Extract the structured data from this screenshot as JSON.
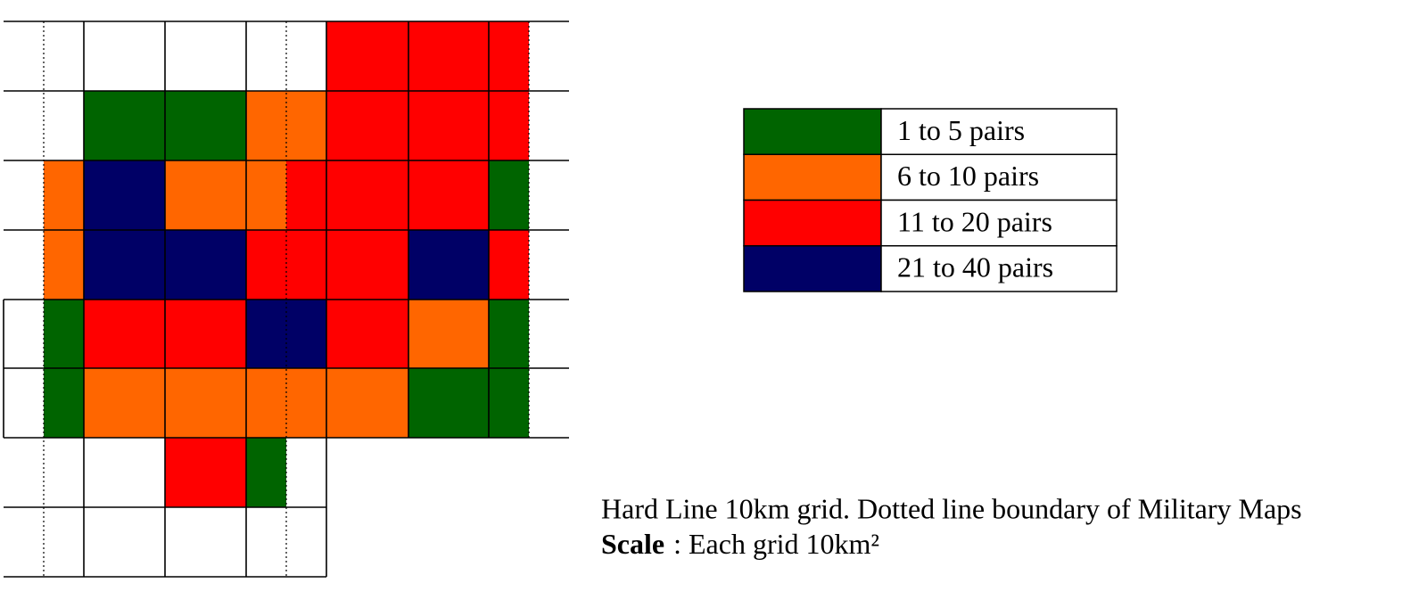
{
  "grid": {
    "rows": [
      [
        null,
        null,
        null,
        null,
        null,
        null,
        "#ff0000",
        "#ff0000",
        "#ff0000",
        null
      ],
      [
        null,
        null,
        "#006400",
        "#006400",
        "#ff6600",
        "#ff6600",
        "#ff0000",
        "#ff0000",
        "#ff0000",
        null
      ],
      [
        null,
        "#ff6600",
        "#000066",
        "#ff6600",
        "#ff6600",
        "#ff0000",
        "#ff0000",
        "#ff0000",
        "#006400",
        null
      ],
      [
        null,
        "#ff6600",
        "#000066",
        "#000066",
        "#ff0000",
        "#ff0000",
        "#ff0000",
        "#000066",
        "#ff0000",
        null
      ],
      [
        null,
        "#006400",
        "#ff0000",
        "#ff0000",
        "#000066",
        "#000066",
        "#ff0000",
        "#ff6600",
        "#006400",
        null
      ],
      [
        null,
        "#006400",
        "#ff6600",
        "#ff6600",
        "#ff6600",
        "#ff6600",
        "#ff6600",
        "#006400",
        "#006400",
        null
      ],
      [
        null,
        null,
        null,
        "#ff0000",
        "#006400"
      ],
      [
        null,
        null,
        null,
        null,
        null
      ]
    ]
  },
  "legend": {
    "items": [
      {
        "color": "#006400",
        "label": "1 to 5 pairs"
      },
      {
        "color": "#ff6600",
        "label": "6 to 10 pairs"
      },
      {
        "color": "#ff0000",
        "label": "11 to 20 pairs"
      },
      {
        "color": "#000066",
        "label": "21 to 40 pairs"
      }
    ]
  },
  "caption": {
    "line1": "Hard Line 10km grid. Dotted line boundary of Military Maps",
    "scale_label": "Scale",
    "scale_text": ": Each grid 10km²"
  }
}
